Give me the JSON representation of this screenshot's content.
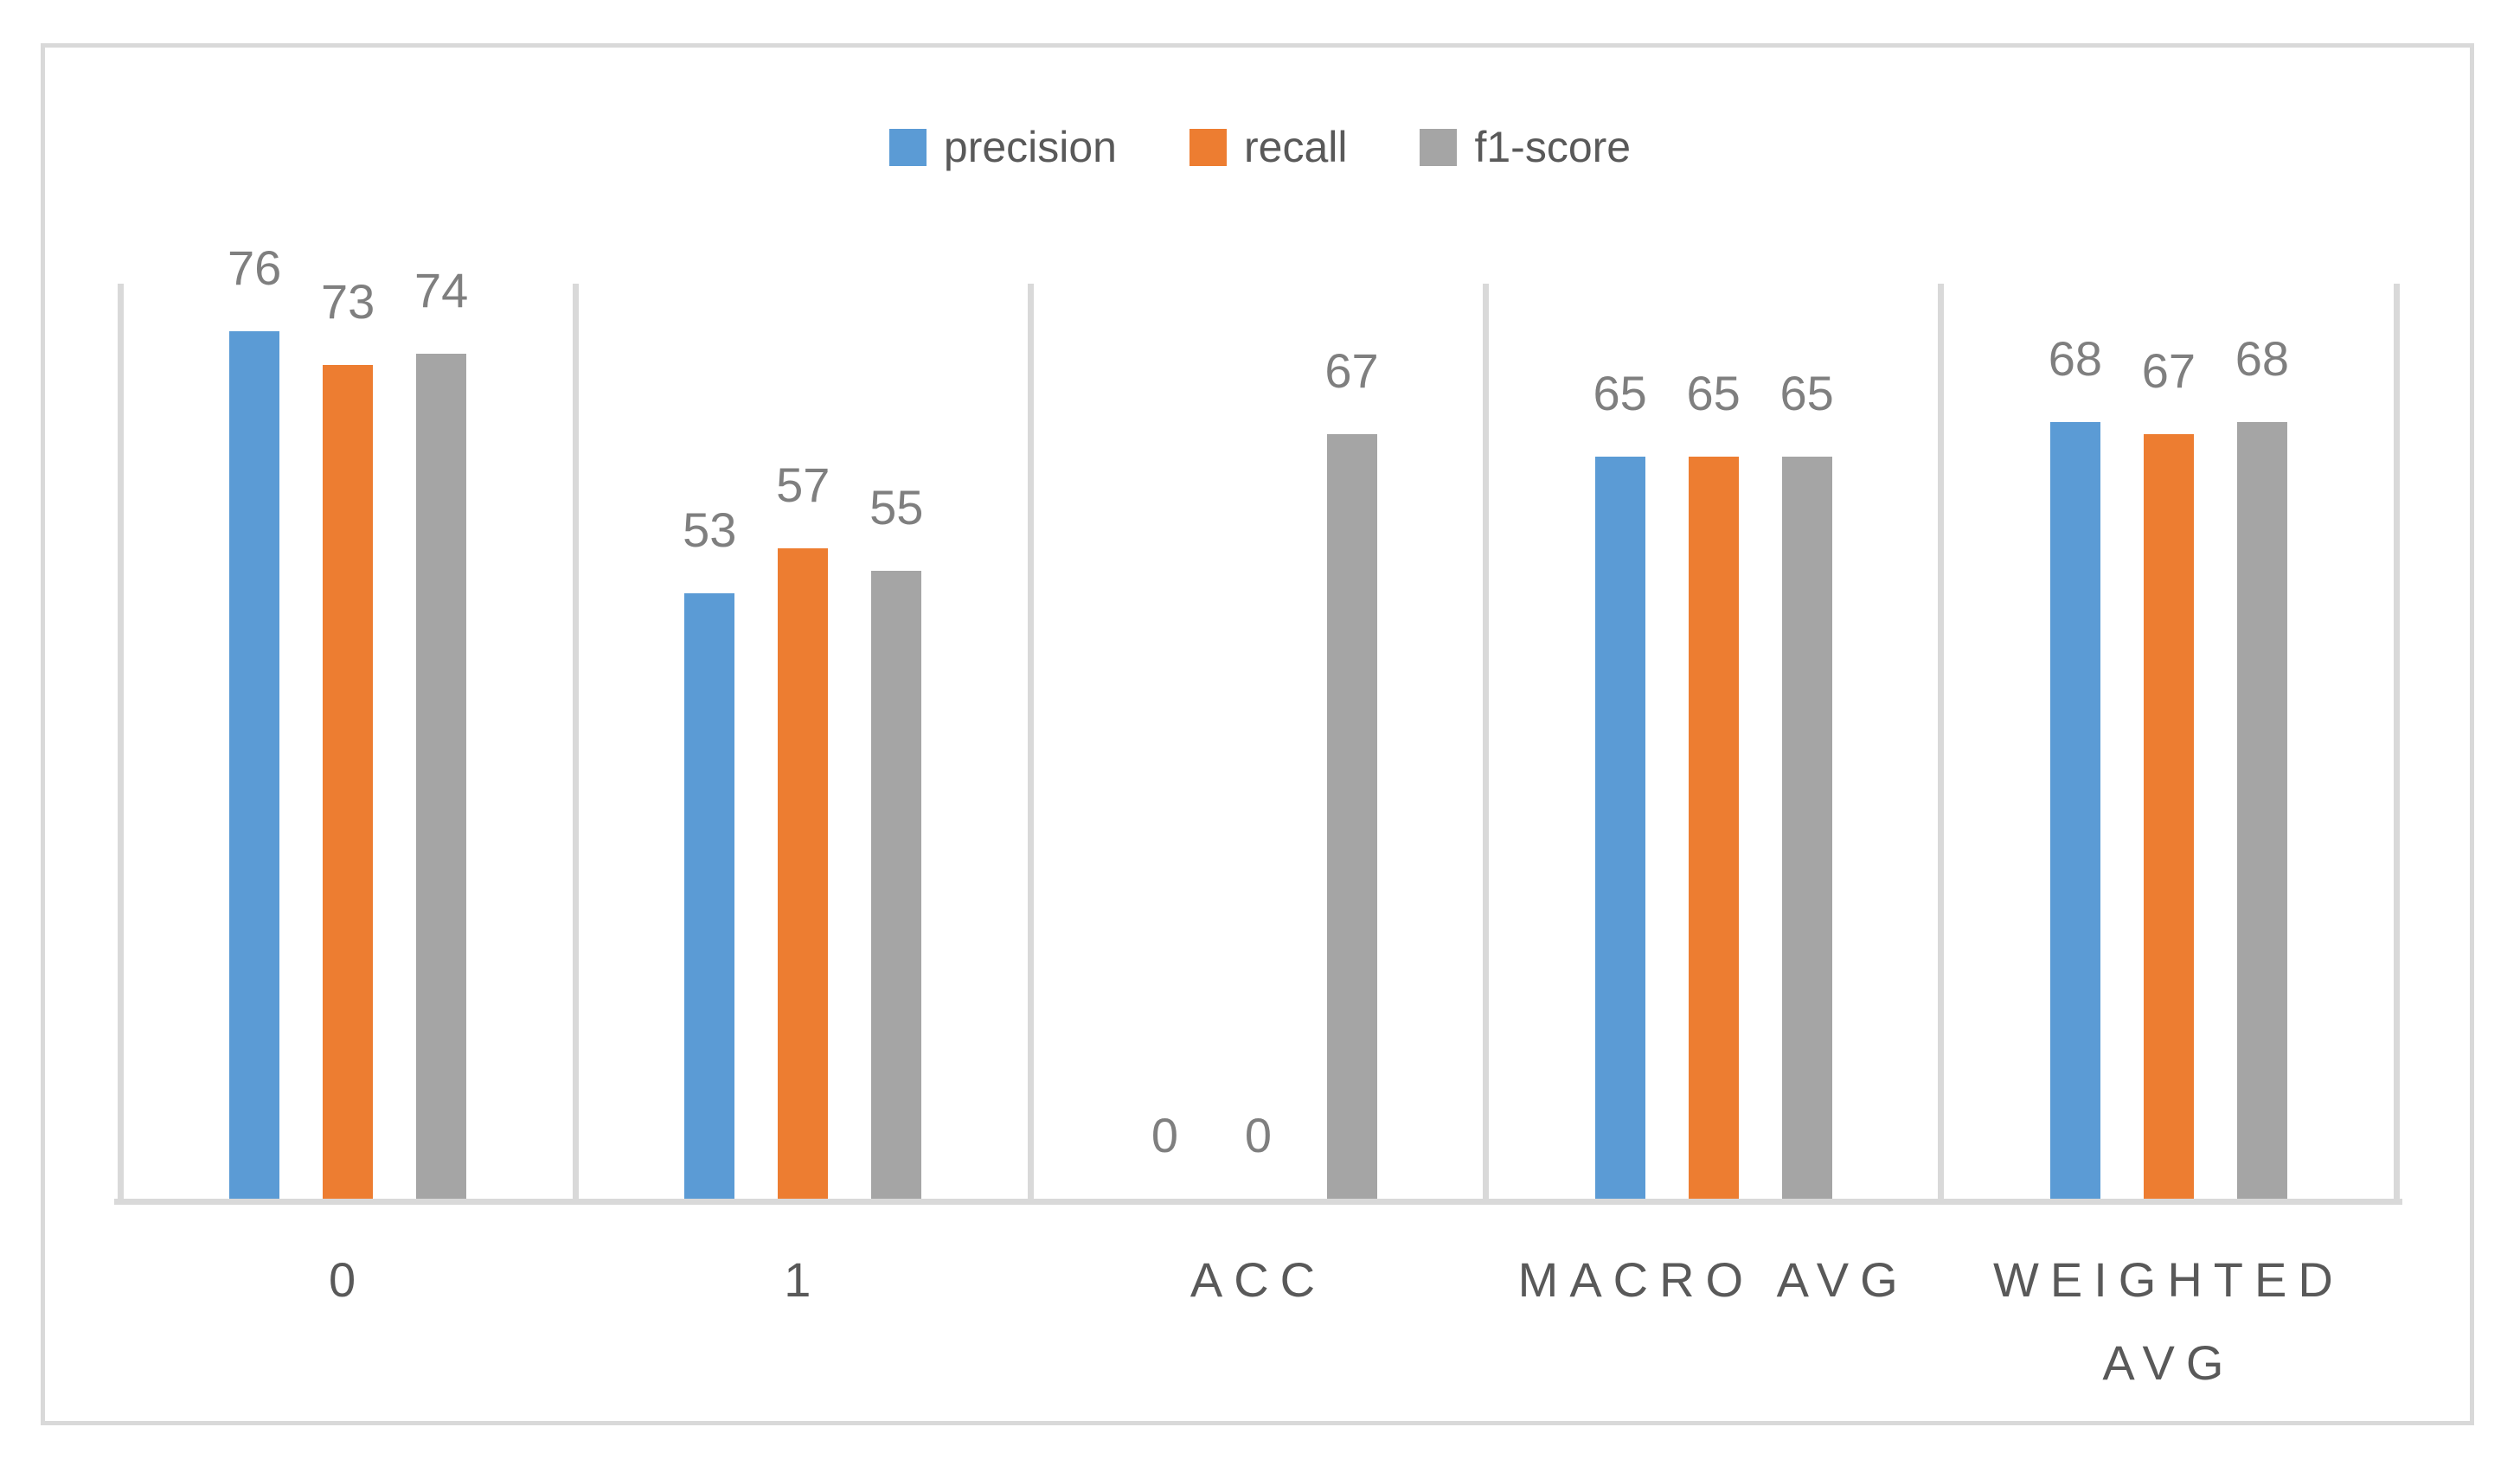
{
  "chart_data": {
    "type": "bar",
    "title": "",
    "categories": [
      "0",
      "1",
      "ACC",
      "MACRO AVG",
      "WEIGHTED AVG"
    ],
    "series": [
      {
        "name": "precision",
        "color": "#5B9BD5",
        "values": [
          76,
          53,
          0,
          65,
          68
        ]
      },
      {
        "name": "recall",
        "color": "#ED7D31",
        "values": [
          73,
          57,
          0,
          65,
          67
        ]
      },
      {
        "name": "f1-score",
        "color": "#A5A5A5",
        "values": [
          74,
          55,
          67,
          65,
          68
        ]
      }
    ],
    "ylim": [
      0,
      80
    ],
    "grid": "vertical-category-separators-only",
    "legend_position": "top-center",
    "data_labels": "outside-end",
    "data_label_color": "#7F7F7F",
    "category_label_color": "#595959",
    "gridline_color": "#D9D9D9",
    "axis_line_color": "#D9D9D9",
    "frame_border_color": "#D9D9D9"
  }
}
